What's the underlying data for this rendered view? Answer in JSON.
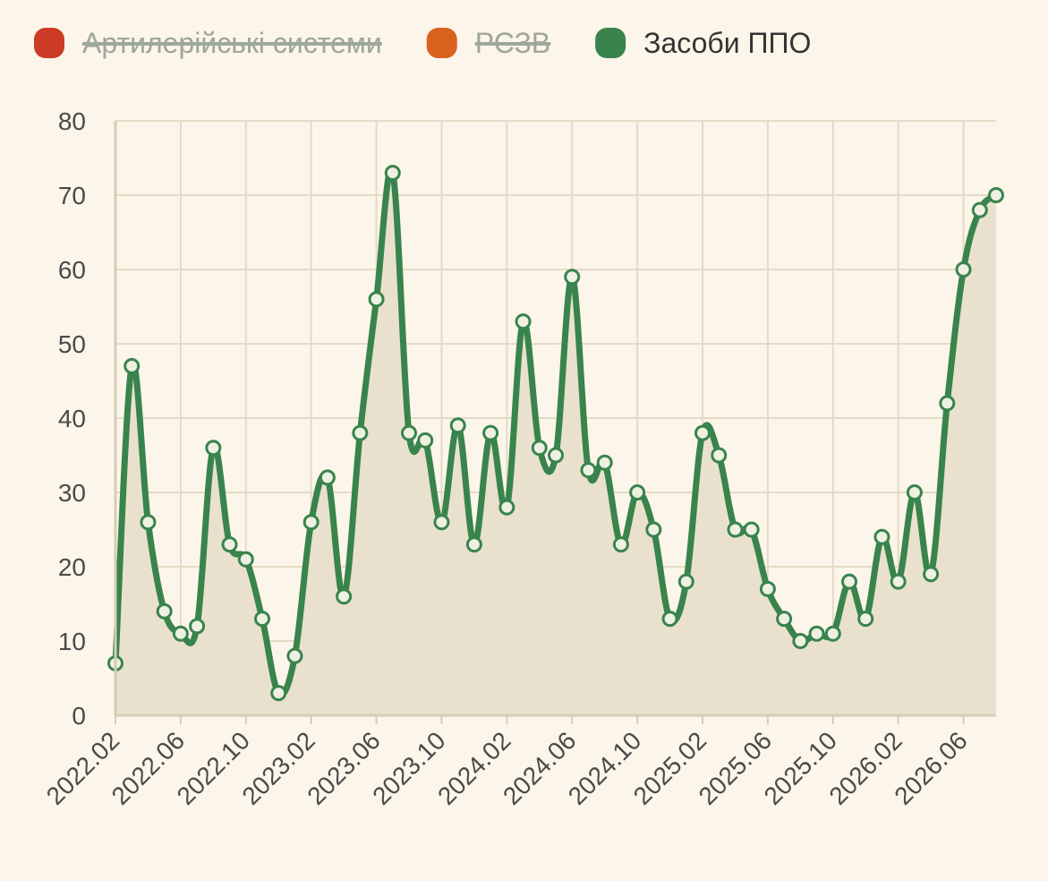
{
  "chart_data": {
    "type": "line",
    "categories": [
      "2022.02",
      null,
      null,
      null,
      "2022.06",
      null,
      null,
      null,
      "2022.10",
      null,
      null,
      null,
      "2023.02",
      null,
      null,
      null,
      "2023.06",
      null,
      null,
      null,
      "2023.10",
      null,
      null,
      null,
      "2024.02",
      null,
      null,
      null,
      "2024.06",
      null,
      null,
      null,
      "2024.10",
      null,
      null,
      null,
      "2025.02",
      null,
      null,
      null,
      "2025.06",
      null,
      null,
      null,
      "2025.10",
      null,
      null,
      null,
      "2026.02",
      null,
      null,
      null,
      "2026.06",
      null,
      null
    ],
    "series": [
      {
        "name": "Артилерійські системи",
        "color": "#cc3b25",
        "hidden": true
      },
      {
        "name": "РСЗВ",
        "color": "#d9621f",
        "hidden": true
      },
      {
        "name": "Засоби ППО",
        "color": "#38844c",
        "values": [
          7,
          47,
          26,
          14,
          11,
          12,
          36,
          23,
          21,
          13,
          3,
          8,
          26,
          32,
          16,
          38,
          56,
          73,
          38,
          37,
          26,
          39,
          23,
          38,
          28,
          53,
          36,
          35,
          59,
          33,
          34,
          23,
          30,
          25,
          13,
          18,
          38,
          35,
          25,
          25,
          17,
          13,
          10,
          11,
          11,
          18,
          13,
          24,
          18,
          30,
          19,
          42,
          60,
          68,
          70
        ]
      }
    ],
    "ylim": [
      0,
      80
    ],
    "yticks": [
      0,
      10,
      20,
      30,
      40,
      50,
      60,
      70,
      80
    ],
    "grid": true
  }
}
